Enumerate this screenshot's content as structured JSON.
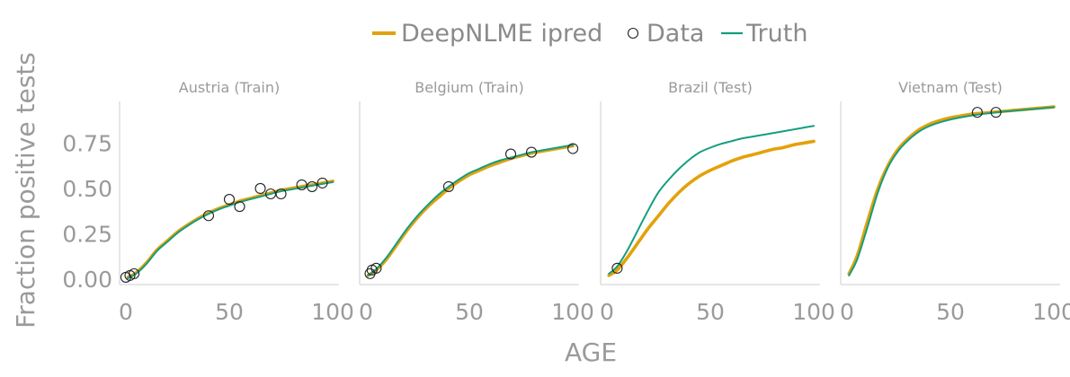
{
  "chart_data": {
    "type": "line",
    "xlabel": "AGE",
    "ylabel": "Fraction positive tests",
    "legend": {
      "placement": "top-center",
      "entries": [
        {
          "label": "DeepNLME ipred",
          "kind": "line",
          "color": "#E3A20B"
        },
        {
          "label": "Data",
          "kind": "marker"
        },
        {
          "label": "Truth",
          "kind": "line",
          "color": "#139E7F"
        }
      ]
    },
    "xlim": [
      -3,
      103
    ],
    "ylim": [
      -0.03,
      0.98
    ],
    "xticks": [
      0,
      50,
      100
    ],
    "yticks": [
      0.0,
      0.25,
      0.5,
      0.75
    ],
    "ytick_labels": [
      "0.00",
      "0.25",
      "0.50",
      "0.75"
    ],
    "panels": [
      {
        "title": "Austria (Train)",
        "x": [
          1,
          5,
          10,
          15,
          20,
          25,
          30,
          35,
          40,
          45,
          50,
          55,
          60,
          65,
          70,
          75,
          80,
          85,
          90,
          95,
          100
        ],
        "series": [
          {
            "name": "DeepNLME ipred",
            "values": [
              0.01,
              0.035,
              0.09,
              0.16,
              0.21,
              0.26,
              0.3,
              0.335,
              0.365,
              0.39,
              0.41,
              0.43,
              0.445,
              0.46,
              0.475,
              0.49,
              0.5,
              0.51,
              0.52,
              0.53,
              0.54
            ]
          },
          {
            "name": "Truth",
            "values": [
              0.005,
              0.03,
              0.085,
              0.155,
              0.205,
              0.255,
              0.295,
              0.33,
              0.36,
              0.385,
              0.405,
              0.425,
              0.44,
              0.455,
              0.47,
              0.485,
              0.495,
              0.505,
              0.515,
              0.525,
              0.535
            ]
          }
        ],
        "points": [
          [
            0,
            0.01
          ],
          [
            2,
            0.02
          ],
          [
            4,
            0.03
          ],
          [
            40,
            0.35
          ],
          [
            50,
            0.44
          ],
          [
            55,
            0.4
          ],
          [
            65,
            0.5
          ],
          [
            70,
            0.47
          ],
          [
            75,
            0.47
          ],
          [
            85,
            0.52
          ],
          [
            90,
            0.51
          ],
          [
            95,
            0.53
          ]
        ]
      },
      {
        "title": "Belgium (Train)",
        "x": [
          1,
          5,
          10,
          15,
          20,
          25,
          30,
          35,
          40,
          45,
          50,
          55,
          60,
          65,
          70,
          75,
          80,
          85,
          90,
          95,
          100
        ],
        "series": [
          {
            "name": "DeepNLME ipred",
            "values": [
              0.02,
              0.05,
              0.11,
              0.19,
              0.27,
              0.34,
              0.4,
              0.45,
              0.5,
              0.54,
              0.575,
              0.6,
              0.625,
              0.645,
              0.665,
              0.68,
              0.695,
              0.705,
              0.715,
              0.725,
              0.735
            ]
          },
          {
            "name": "Truth",
            "values": [
              0.02,
              0.055,
              0.12,
              0.2,
              0.28,
              0.35,
              0.41,
              0.465,
              0.51,
              0.55,
              0.585,
              0.61,
              0.635,
              0.655,
              0.67,
              0.685,
              0.7,
              0.71,
              0.72,
              0.73,
              0.74
            ]
          }
        ],
        "points": [
          [
            2,
            0.03
          ],
          [
            3,
            0.05
          ],
          [
            5,
            0.06
          ],
          [
            40,
            0.51
          ],
          [
            70,
            0.69
          ],
          [
            80,
            0.7
          ],
          [
            100,
            0.72
          ]
        ]
      },
      {
        "title": "Brazil (Test)",
        "x": [
          1,
          5,
          10,
          15,
          20,
          25,
          30,
          35,
          40,
          45,
          50,
          55,
          60,
          65,
          70,
          75,
          80,
          85,
          90,
          95,
          100
        ],
        "series": [
          {
            "name": "DeepNLME ipred",
            "values": [
              0.02,
              0.05,
              0.12,
              0.2,
              0.28,
              0.35,
              0.42,
              0.48,
              0.53,
              0.57,
              0.6,
              0.625,
              0.65,
              0.67,
              0.685,
              0.7,
              0.715,
              0.725,
              0.74,
              0.75,
              0.76
            ]
          },
          {
            "name": "Truth",
            "values": [
              0.03,
              0.07,
              0.16,
              0.27,
              0.38,
              0.48,
              0.55,
              0.61,
              0.66,
              0.7,
              0.725,
              0.745,
              0.76,
              0.775,
              0.785,
              0.795,
              0.805,
              0.815,
              0.825,
              0.835,
              0.845
            ]
          }
        ],
        "points": [
          [
            5,
            0.06
          ]
        ]
      },
      {
        "title": "Vietnam (Test)",
        "x": [
          1,
          5,
          10,
          15,
          20,
          25,
          30,
          35,
          40,
          45,
          50,
          55,
          60,
          65,
          70,
          75,
          80,
          85,
          90,
          95,
          100
        ],
        "series": [
          {
            "name": "DeepNLME ipred",
            "values": [
              0.03,
              0.13,
              0.32,
              0.5,
              0.63,
              0.72,
              0.78,
              0.825,
              0.855,
              0.875,
              0.89,
              0.9,
              0.91,
              0.915,
              0.92,
              0.925,
              0.93,
              0.935,
              0.94,
              0.945,
              0.95
            ]
          },
          {
            "name": "Truth",
            "values": [
              0.02,
              0.11,
              0.29,
              0.48,
              0.62,
              0.71,
              0.77,
              0.815,
              0.845,
              0.865,
              0.88,
              0.892,
              0.902,
              0.91,
              0.917,
              0.923,
              0.928,
              0.933,
              0.938,
              0.943,
              0.948
            ]
          }
        ],
        "points": [
          [
            63,
            0.92
          ],
          [
            72,
            0.92
          ]
        ]
      }
    ]
  }
}
